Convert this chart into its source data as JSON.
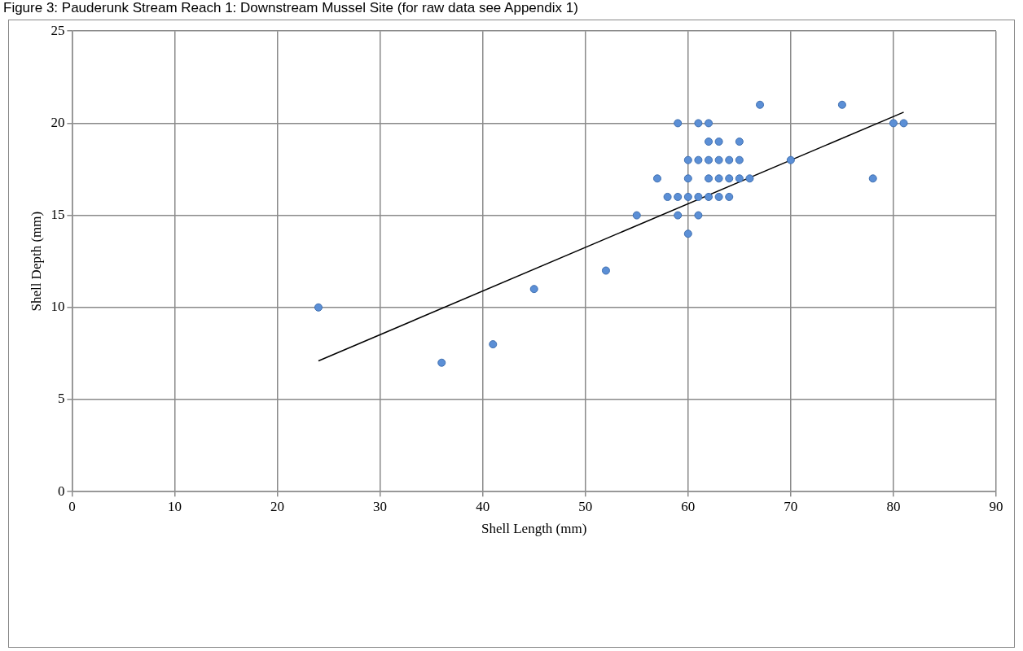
{
  "chart_data": {
    "type": "scatter",
    "title": "Figure 3: Pauderunk Stream Reach 1: Downstream Mussel Site (for raw data see Appendix 1)",
    "xlabel": "Shell Length (mm)",
    "ylabel": "Shell Depth (mm)",
    "series": [
      {
        "color": "#5b8fd6",
        "marker": "circle",
        "x": [
          24,
          36,
          41,
          45,
          52,
          55,
          57,
          58,
          59,
          59,
          59,
          60,
          60,
          60,
          60,
          61,
          61,
          61,
          61,
          62,
          62,
          62,
          62,
          62,
          63,
          63,
          63,
          63,
          64,
          64,
          64,
          65,
          65,
          65,
          66,
          67,
          70,
          75,
          78,
          80,
          81
        ],
        "values": [
          10,
          7,
          8,
          11,
          12,
          15,
          17,
          16,
          20,
          16,
          15,
          18,
          17,
          16,
          14,
          20,
          18,
          16,
          15,
          20,
          19,
          18,
          17,
          16,
          19,
          18,
          17,
          16,
          18,
          17,
          16,
          19,
          18,
          17,
          17,
          21,
          18,
          21,
          17,
          20,
          20
        ]
      },
      {
        "type": "line",
        "color": "#000000",
        "marker": "none",
        "x": [
          24,
          81
        ],
        "values": [
          7.1,
          20.6
        ]
      }
    ],
    "xlim": [
      0,
      90
    ],
    "xticks": [
      0,
      10,
      20,
      30,
      40,
      50,
      60,
      70,
      80,
      90
    ],
    "ylim": [
      0,
      25
    ],
    "yticks": [
      0,
      5,
      10,
      15,
      20,
      25
    ],
    "grid": true,
    "legend": false
  }
}
